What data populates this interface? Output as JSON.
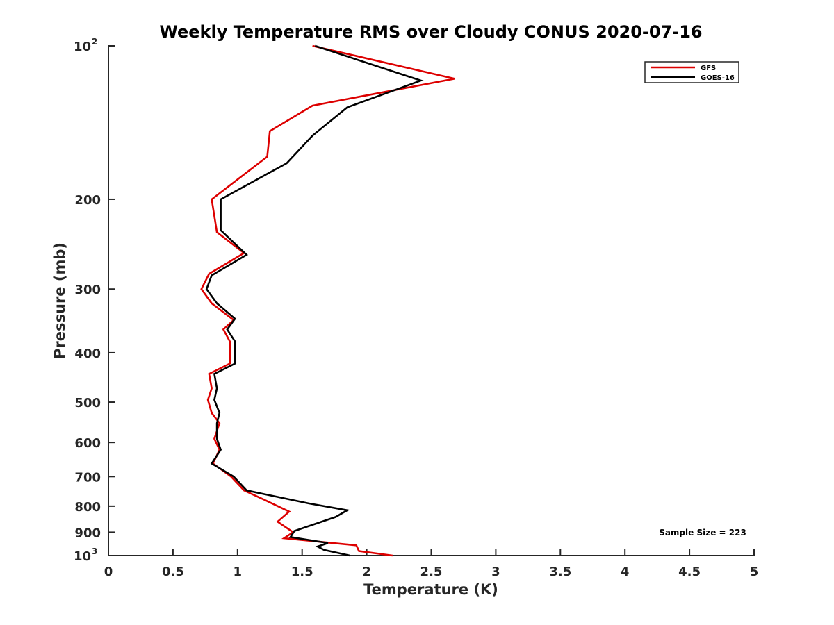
{
  "chart_data": {
    "type": "line",
    "title": "Weekly Temperature RMS over Cloudy CONUS 2020-07-16",
    "xlabel": "Temperature (K)",
    "ylabel": "Pressure (mb)",
    "xlim": [
      0,
      5
    ],
    "ylim": [
      100,
      1000
    ],
    "y_scale": "log",
    "y_reversed": true,
    "grid": false,
    "legend_position": "top-right",
    "annotation": "Sample Size = 223",
    "x_ticks": [
      {
        "value": 0,
        "label": "0"
      },
      {
        "value": 0.5,
        "label": "0.5"
      },
      {
        "value": 1,
        "label": "1"
      },
      {
        "value": 1.5,
        "label": "1.5"
      },
      {
        "value": 2,
        "label": "2"
      },
      {
        "value": 2.5,
        "label": "2.5"
      },
      {
        "value": 3,
        "label": "3"
      },
      {
        "value": 3.5,
        "label": "3.5"
      },
      {
        "value": 4,
        "label": "4"
      },
      {
        "value": 4.5,
        "label": "4.5"
      },
      {
        "value": 5,
        "label": "5"
      }
    ],
    "y_ticks": [
      {
        "value": 100,
        "label": "10",
        "exponent": "2"
      },
      {
        "value": 200,
        "label": "200"
      },
      {
        "value": 300,
        "label": "300"
      },
      {
        "value": 400,
        "label": "400"
      },
      {
        "value": 500,
        "label": "500"
      },
      {
        "value": 600,
        "label": "600"
      },
      {
        "value": 700,
        "label": "700"
      },
      {
        "value": 800,
        "label": "800"
      },
      {
        "value": 900,
        "label": "900"
      },
      {
        "value": 1000,
        "label": "10",
        "exponent": "3"
      }
    ],
    "series": [
      {
        "name": "GFS",
        "color": "#dd0000",
        "points": [
          {
            "x": 1.58,
            "y": 100
          },
          {
            "x": 2.68,
            "y": 116
          },
          {
            "x": 1.58,
            "y": 131
          },
          {
            "x": 1.25,
            "y": 147
          },
          {
            "x": 1.23,
            "y": 165
          },
          {
            "x": 0.8,
            "y": 200
          },
          {
            "x": 0.84,
            "y": 232
          },
          {
            "x": 1.05,
            "y": 255
          },
          {
            "x": 0.78,
            "y": 280
          },
          {
            "x": 0.72,
            "y": 300
          },
          {
            "x": 0.8,
            "y": 320
          },
          {
            "x": 0.97,
            "y": 345
          },
          {
            "x": 0.89,
            "y": 360
          },
          {
            "x": 0.94,
            "y": 380
          },
          {
            "x": 0.94,
            "y": 420
          },
          {
            "x": 0.78,
            "y": 440
          },
          {
            "x": 0.8,
            "y": 470
          },
          {
            "x": 0.77,
            "y": 495
          },
          {
            "x": 0.8,
            "y": 525
          },
          {
            "x": 0.86,
            "y": 550
          },
          {
            "x": 0.82,
            "y": 590
          },
          {
            "x": 0.86,
            "y": 620
          },
          {
            "x": 0.81,
            "y": 660
          },
          {
            "x": 0.95,
            "y": 700
          },
          {
            "x": 1.05,
            "y": 745
          },
          {
            "x": 1.22,
            "y": 780
          },
          {
            "x": 1.4,
            "y": 820
          },
          {
            "x": 1.31,
            "y": 858
          },
          {
            "x": 1.43,
            "y": 900
          },
          {
            "x": 1.36,
            "y": 925
          },
          {
            "x": 1.92,
            "y": 955
          },
          {
            "x": 1.94,
            "y": 980
          },
          {
            "x": 2.2,
            "y": 1000
          }
        ]
      },
      {
        "name": "GOES-16",
        "color": "#000000",
        "points": [
          {
            "x": 1.6,
            "y": 100
          },
          {
            "x": 2.42,
            "y": 117
          },
          {
            "x": 1.85,
            "y": 132
          },
          {
            "x": 1.58,
            "y": 150
          },
          {
            "x": 1.38,
            "y": 170
          },
          {
            "x": 0.87,
            "y": 200
          },
          {
            "x": 0.87,
            "y": 230
          },
          {
            "x": 1.07,
            "y": 257
          },
          {
            "x": 0.8,
            "y": 282
          },
          {
            "x": 0.76,
            "y": 300
          },
          {
            "x": 0.84,
            "y": 320
          },
          {
            "x": 0.98,
            "y": 343
          },
          {
            "x": 0.92,
            "y": 360
          },
          {
            "x": 0.98,
            "y": 380
          },
          {
            "x": 0.98,
            "y": 420
          },
          {
            "x": 0.82,
            "y": 440
          },
          {
            "x": 0.84,
            "y": 470
          },
          {
            "x": 0.82,
            "y": 495
          },
          {
            "x": 0.86,
            "y": 525
          },
          {
            "x": 0.84,
            "y": 550
          },
          {
            "x": 0.84,
            "y": 590
          },
          {
            "x": 0.87,
            "y": 620
          },
          {
            "x": 0.8,
            "y": 660
          },
          {
            "x": 0.97,
            "y": 700
          },
          {
            "x": 1.07,
            "y": 745
          },
          {
            "x": 1.55,
            "y": 790
          },
          {
            "x": 1.85,
            "y": 815
          },
          {
            "x": 1.76,
            "y": 840
          },
          {
            "x": 1.44,
            "y": 895
          },
          {
            "x": 1.41,
            "y": 920
          },
          {
            "x": 1.7,
            "y": 945
          },
          {
            "x": 1.62,
            "y": 960
          },
          {
            "x": 1.67,
            "y": 975
          },
          {
            "x": 1.87,
            "y": 1000
          }
        ]
      }
    ]
  }
}
